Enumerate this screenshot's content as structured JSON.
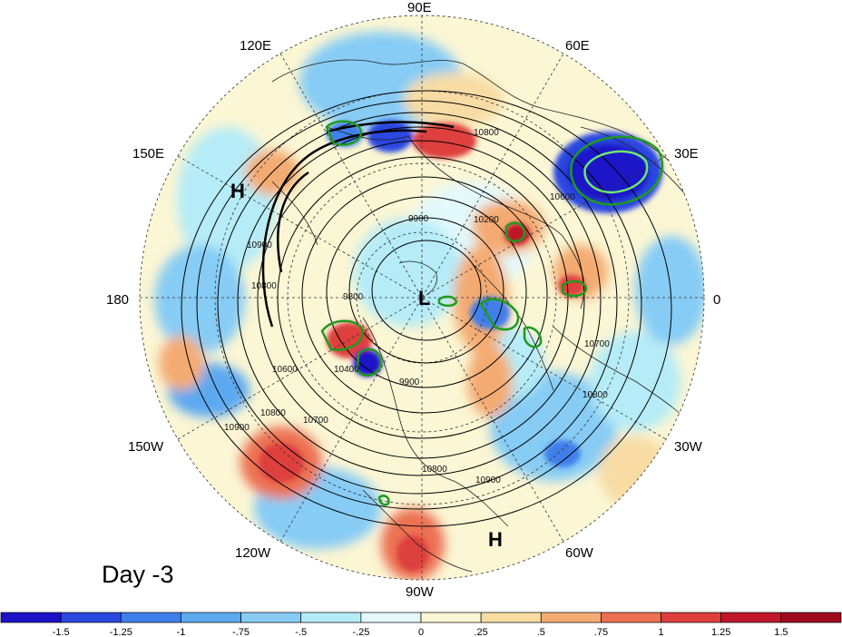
{
  "lon_labels": {
    "e90": "90E",
    "e60": "60E",
    "e30": "30E",
    "e0": "0",
    "w30": "30W",
    "w60": "60W",
    "w90": "90W",
    "w120": "120W",
    "w150": "150W",
    "w180": "180",
    "e150": "150E",
    "e120": "120E"
  },
  "systems": [
    {
      "label": "H",
      "name": "high-pacific"
    },
    {
      "label": "L",
      "name": "low-pole"
    },
    {
      "label": "H",
      "name": "high-atlantic"
    }
  ],
  "contour_labels": [
    "10800",
    "9900",
    "10200",
    "10600",
    "10900",
    "10800",
    "10600",
    "10400",
    "9800",
    "9900",
    "10700",
    "10800",
    "10900",
    "10800",
    "10900",
    "10700",
    "10800"
  ],
  "day_label": "Day -3",
  "colorbar": {
    "ticks": [
      "-1.5",
      "-1.25",
      "-1",
      "-.75",
      "-.5",
      "-.25",
      "0",
      ".25",
      ".5",
      ".75",
      "1",
      "1.25",
      "1.5"
    ],
    "colors": [
      "#1c12c8",
      "#2a47e0",
      "#3f7fea",
      "#5da9f0",
      "#86ccf5",
      "#b5ecf7",
      "#e3f9fb",
      "#fbf6d4",
      "#f8dca4",
      "#f4ab72",
      "#ec7152",
      "#de3f3c",
      "#c0182a",
      "#a00a1e"
    ]
  }
}
